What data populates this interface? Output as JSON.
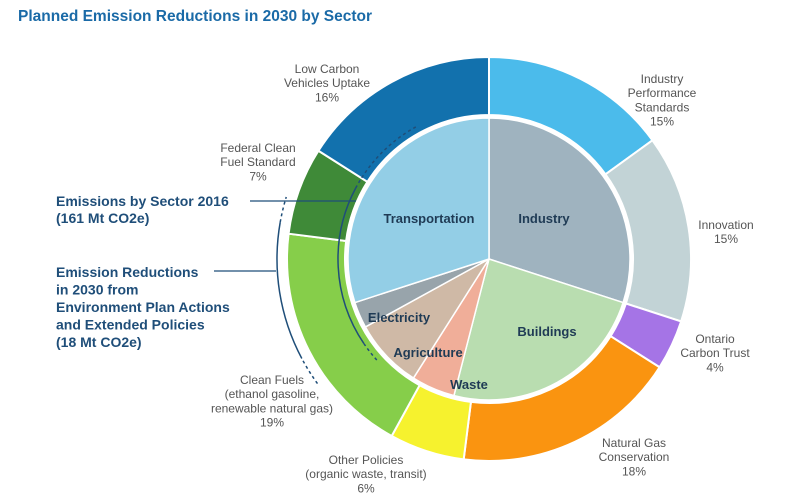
{
  "title": "Planned Emission Reductions in 2030 by Sector",
  "annotations": {
    "inner_label": [
      "Emissions by Sector 2016",
      "(161 Mt CO2e)"
    ],
    "outer_label": [
      "Emission Reductions",
      "in 2030 from",
      "Environment Plan Actions",
      "and Extended Policies",
      "(18 Mt CO2e)"
    ]
  },
  "chart_data": [
    {
      "type": "pie",
      "name": "Emissions by Sector 2016 (161 Mt CO2e)",
      "slices": [
        {
          "label": "Industry",
          "value": 30,
          "color": "#9fb3bf"
        },
        {
          "label": "Buildings",
          "value": 24,
          "color": "#b9ddb0"
        },
        {
          "label": "Waste",
          "value": 5,
          "color": "#f0ae99"
        },
        {
          "label": "Agriculture",
          "value": 8,
          "color": "#cfb9a6"
        },
        {
          "label": "Electricity",
          "value": 3,
          "color": "#98a4ab"
        },
        {
          "label": "Transportation",
          "value": 30,
          "color": "#93cee6"
        }
      ]
    },
    {
      "type": "pie",
      "name": "Emission Reductions in 2030 from Environment Plan Actions and Extended Policies (18 Mt CO2e)",
      "slices": [
        {
          "label": "Industry Performance Standards",
          "value": 15,
          "percent": "15%",
          "color": "#4bbbeb",
          "lines": [
            "Industry",
            "Performance",
            "Standards",
            "15%"
          ]
        },
        {
          "label": "Innovation",
          "value": 15,
          "percent": "15%",
          "color": "#c2d3d6",
          "lines": [
            "Innovation",
            "15%"
          ]
        },
        {
          "label": "Ontario Carbon Trust",
          "value": 4,
          "percent": "4%",
          "color": "#a574e6",
          "lines": [
            "Ontario",
            "Carbon Trust",
            "4%"
          ]
        },
        {
          "label": "Natural Gas Conservation",
          "value": 18,
          "percent": "18%",
          "color": "#fa9410",
          "lines": [
            "Natural Gas",
            "Conservation",
            "18%"
          ]
        },
        {
          "label": "Other Policies (organic waste, transit)",
          "value": 6,
          "percent": "6%",
          "color": "#f6f22e",
          "lines": [
            "Other Policies",
            "(organic waste, transit)",
            "6%"
          ]
        },
        {
          "label": "Clean Fuels (ethanol gasoline, renewable natural gas)",
          "value": 19,
          "percent": "19%",
          "color": "#86ce4a",
          "lines": [
            "Clean Fuels",
            "(ethanol gasoline,",
            "renewable natural gas)",
            "19%"
          ]
        },
        {
          "label": "Federal Clean Fuel Standard",
          "value": 7,
          "percent": "7%",
          "color": "#3f8a38",
          "lines": [
            "Federal Clean",
            "Fuel Standard",
            "7%"
          ]
        },
        {
          "label": "Low Carbon Vehicles Uptake",
          "value": 16,
          "percent": "16%",
          "color": "#1271ad",
          "lines": [
            "Low Carbon",
            "Vehicles Uptake",
            "16%"
          ]
        }
      ]
    }
  ]
}
